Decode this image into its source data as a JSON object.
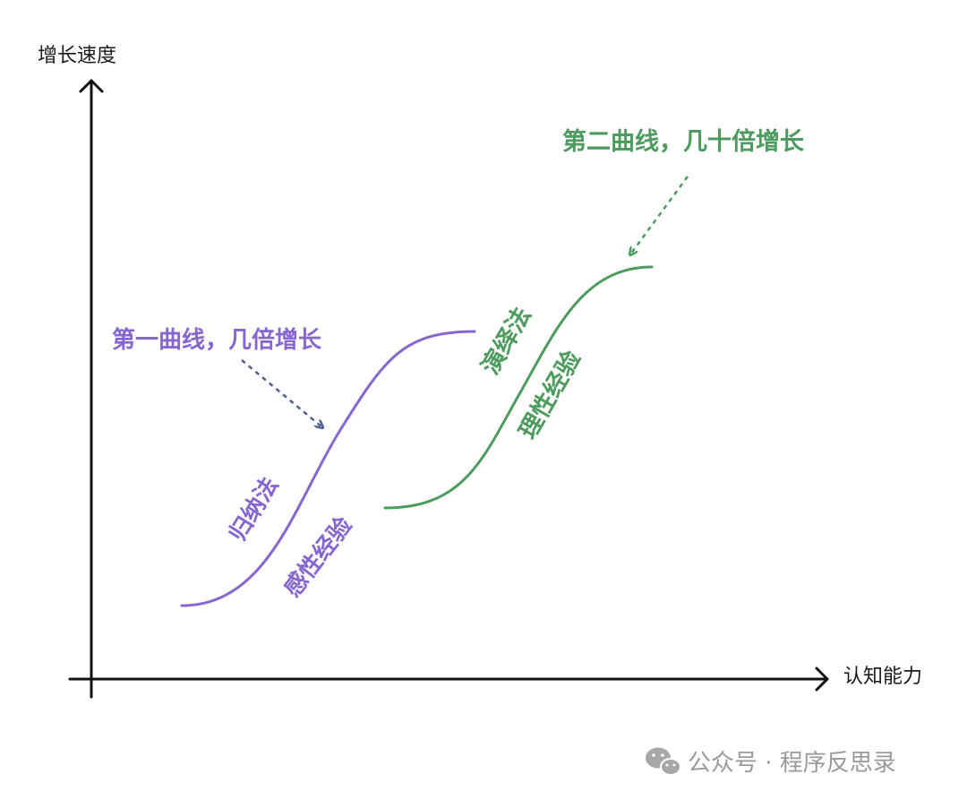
{
  "axes": {
    "y_label": "增长速度",
    "x_label": "认知能力"
  },
  "curve1": {
    "title": "第一曲线，几倍增长",
    "method": "归纳法",
    "basis": "感性经验",
    "color": "#8766cf",
    "arrow_color": "#4e5f92"
  },
  "curve2": {
    "title": "第二曲线，几十倍增长",
    "method": "演绎法",
    "basis": "理性经验",
    "color": "#4e9b5f"
  },
  "watermark": {
    "icon": "wechat-icon",
    "text": "公众号 · 程序反思录"
  }
}
